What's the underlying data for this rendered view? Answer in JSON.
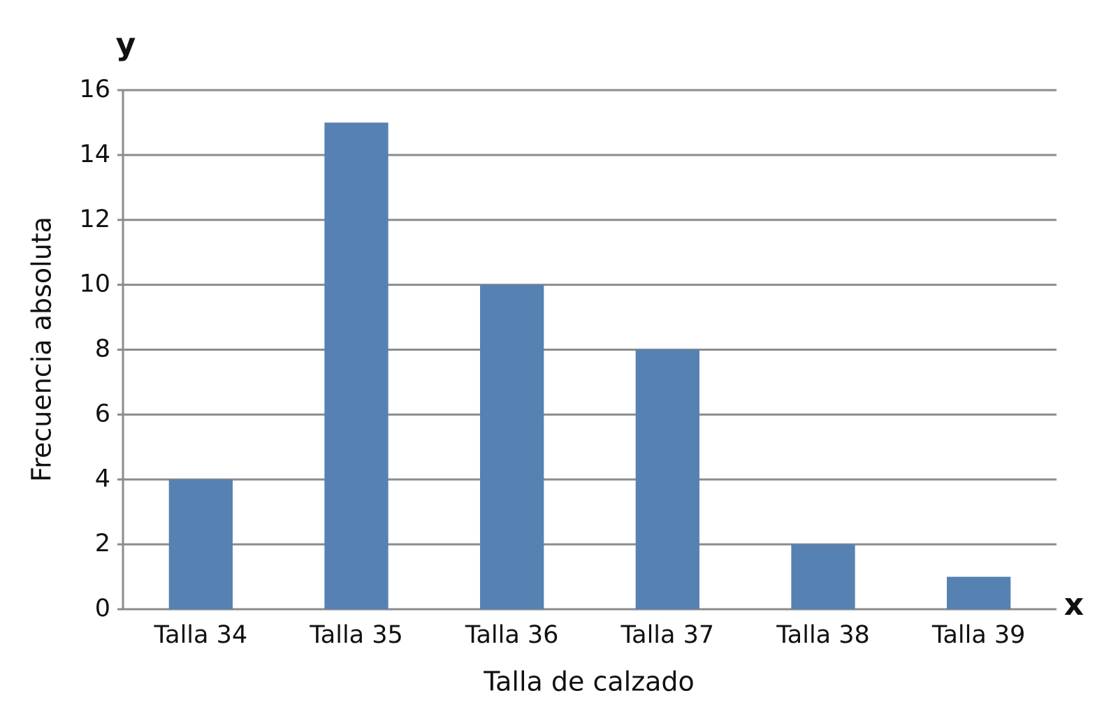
{
  "chart_data": {
    "type": "bar",
    "categories": [
      "Talla 34",
      "Talla 35",
      "Talla 36",
      "Talla 37",
      "Talla 38",
      "Talla 39"
    ],
    "values": [
      4,
      15,
      10,
      8,
      2,
      1
    ],
    "color": "#5681b3",
    "ylim": [
      0,
      16
    ],
    "yticks": [
      0,
      2,
      4,
      6,
      8,
      10,
      12,
      14,
      16
    ],
    "grid": true,
    "x_label": "Talla de calzado",
    "y_label": "Frecuencia absoluta",
    "annotations": [
      "y",
      "x"
    ]
  }
}
